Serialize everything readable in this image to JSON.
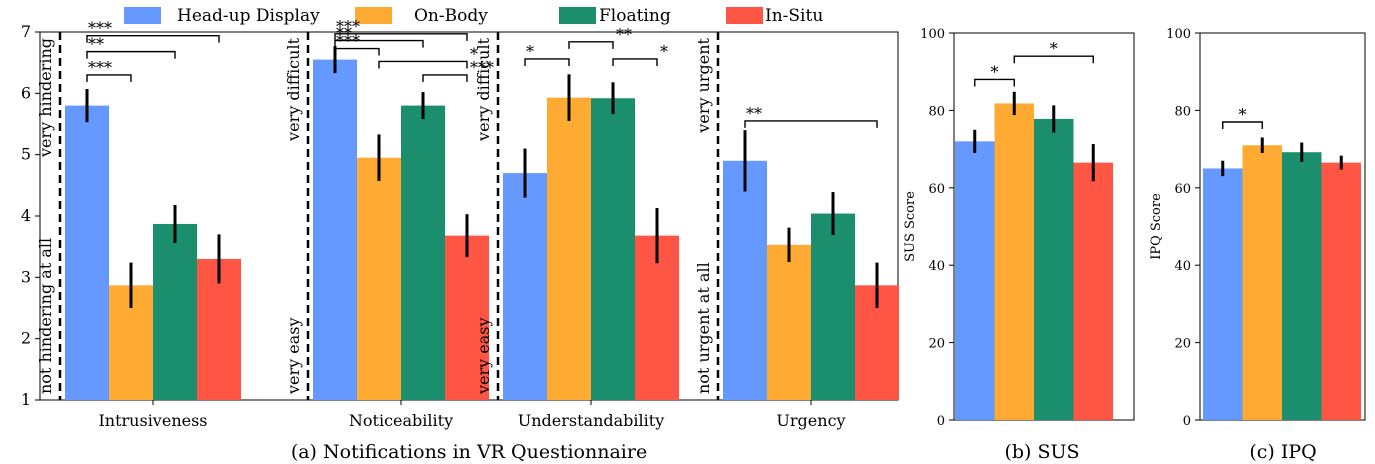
{
  "colors": {
    "Head-up Display": "#6699ff",
    "On-Body": "#ffab33",
    "Floating": "#1b8e6e",
    "In-Situ": "#ff5544"
  },
  "legend": [
    "Head-up Display",
    "On-Body",
    "Floating",
    "In-Situ"
  ],
  "chart_data": [
    {
      "type": "bar",
      "caption": "(a) Notifications in VR Questionnaire",
      "categories": [
        "Intrusiveness",
        "Noticeability",
        "Understandability",
        "Urgency"
      ],
      "series": [
        {
          "name": "Head-up Display",
          "values": [
            5.8,
            6.55,
            4.7,
            4.9
          ],
          "err": [
            0.27,
            0.22,
            0.4,
            0.5
          ]
        },
        {
          "name": "On-Body",
          "values": [
            2.87,
            4.95,
            5.93,
            3.53
          ],
          "err": [
            0.37,
            0.38,
            0.38,
            0.28
          ]
        },
        {
          "name": "Floating",
          "values": [
            3.87,
            5.8,
            5.92,
            4.04
          ],
          "err": [
            0.31,
            0.22,
            0.26,
            0.35
          ]
        },
        {
          "name": "In-Situ",
          "values": [
            3.3,
            3.68,
            3.68,
            2.87
          ],
          "err": [
            0.4,
            0.35,
            0.45,
            0.37
          ]
        }
      ],
      "ylim": [
        1,
        7
      ],
      "yticks": [
        1,
        2,
        3,
        4,
        5,
        6,
        7
      ],
      "scale_labels": [
        {
          "top": "very hindering",
          "bottom": "not hindering at all"
        },
        {
          "top": "very difficult",
          "bottom": "very easy"
        },
        {
          "top": "very difficult",
          "bottom": "very easy"
        },
        {
          "top": "very urgent",
          "bottom": "not urgent at all"
        }
      ],
      "significance": [
        {
          "group": 0,
          "from": 0,
          "to": 3,
          "y": 6.94,
          "label": "***"
        },
        {
          "group": 0,
          "from": 0,
          "to": 2,
          "y": 6.68,
          "label": "**"
        },
        {
          "group": 0,
          "from": 0,
          "to": 1,
          "y": 6.3,
          "label": "***"
        },
        {
          "group": 1,
          "from": 0,
          "to": 3,
          "y": 6.97,
          "label": "***"
        },
        {
          "group": 1,
          "from": 0,
          "to": 2,
          "y": 6.86,
          "label": "**"
        },
        {
          "group": 1,
          "from": 0,
          "to": 1,
          "y": 6.73,
          "label": "***"
        },
        {
          "group": 1,
          "from": 1,
          "to": 3,
          "y": 6.52,
          "label": "*"
        },
        {
          "group": 1,
          "from": 2,
          "to": 3,
          "y": 6.3,
          "label": "***"
        },
        {
          "group": 2,
          "from": 0,
          "to": 1,
          "y": 6.56,
          "label": "*"
        },
        {
          "group": 2,
          "from": 1,
          "to": 2,
          "y": 6.84,
          "label": "**"
        },
        {
          "group": 2,
          "from": 2,
          "to": 3,
          "y": 6.56,
          "label": "*"
        },
        {
          "group": 3,
          "from": 0,
          "to": 3,
          "y": 5.55,
          "label": "**"
        }
      ]
    },
    {
      "type": "bar",
      "caption": "(b) SUS",
      "ylabel": "SUS Score",
      "series": [
        {
          "name": "Head-up Display",
          "values": [
            72
          ],
          "err": [
            3
          ]
        },
        {
          "name": "On-Body",
          "values": [
            81.8
          ],
          "err": [
            3
          ]
        },
        {
          "name": "Floating",
          "values": [
            77.8
          ],
          "err": [
            3.5
          ]
        },
        {
          "name": "In-Situ",
          "values": [
            66.5
          ],
          "err": [
            4.8
          ]
        }
      ],
      "ylim": [
        0,
        100
      ],
      "yticks": [
        0,
        20,
        40,
        60,
        80,
        100
      ],
      "significance": [
        {
          "group": 0,
          "from": 0,
          "to": 1,
          "y": 88,
          "label": "*"
        },
        {
          "group": 0,
          "from": 1,
          "to": 3,
          "y": 94,
          "label": "*"
        }
      ]
    },
    {
      "type": "bar",
      "caption": "(c) IPQ",
      "ylabel": "IPQ Score",
      "series": [
        {
          "name": "Head-up Display",
          "values": [
            65
          ],
          "err": [
            2
          ]
        },
        {
          "name": "On-Body",
          "values": [
            71
          ],
          "err": [
            2
          ]
        },
        {
          "name": "Floating",
          "values": [
            69.2
          ],
          "err": [
            2.5
          ]
        },
        {
          "name": "In-Situ",
          "values": [
            66.5
          ],
          "err": [
            1.8
          ]
        }
      ],
      "ylim": [
        0,
        100
      ],
      "yticks": [
        0,
        20,
        40,
        60,
        80,
        100
      ],
      "significance": [
        {
          "group": 0,
          "from": 0,
          "to": 1,
          "y": 77,
          "label": "*"
        }
      ]
    }
  ]
}
